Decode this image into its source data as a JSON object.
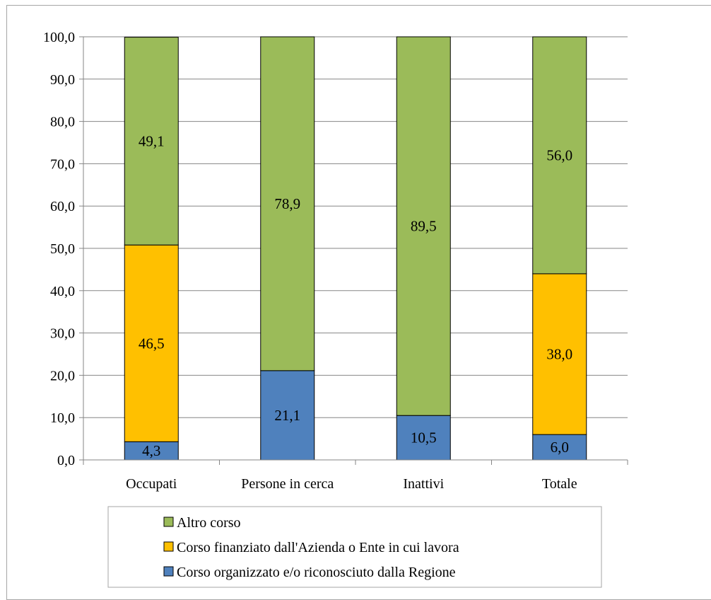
{
  "chart_data": {
    "type": "bar",
    "stacked": true,
    "categories": [
      "Occupati",
      "Persone in cerca",
      "Inattivi",
      "Totale"
    ],
    "series": [
      {
        "name": "Corso organizzato e/o riconosciuto dalla Regione",
        "color": "#4f81bd",
        "values": [
          4.3,
          21.1,
          10.5,
          6.0
        ],
        "labels": [
          "4,3",
          "21,1",
          "10,5",
          "6,0"
        ]
      },
      {
        "name": "Corso finanziato dall'Azienda o Ente in cui lavora",
        "color": "#ffc000",
        "values": [
          46.5,
          0,
          0,
          38.0
        ],
        "labels": [
          "46,5",
          "",
          "",
          "38,0"
        ]
      },
      {
        "name": "Altro corso",
        "color": "#9bbb59",
        "values": [
          49.1,
          78.9,
          89.5,
          56.0
        ],
        "labels": [
          "49,1",
          "78,9",
          "89,5",
          "56,0"
        ]
      }
    ],
    "ylim": [
      0,
      100
    ],
    "yticks": [
      0,
      10,
      20,
      30,
      40,
      50,
      60,
      70,
      80,
      90,
      100
    ],
    "ytick_labels": [
      "0,0",
      "10,0",
      "20,0",
      "30,0",
      "40,0",
      "50,0",
      "60,0",
      "70,0",
      "80,0",
      "90,0",
      "100,0"
    ],
    "grid": true,
    "legend": {
      "placement": "bottom",
      "order": [
        "Altro corso",
        "Corso finanziato dall'Azienda o Ente in cui lavora",
        "Corso organizzato e/o riconosciuto dalla Regione"
      ]
    },
    "colors": {
      "gridline": "#868686",
      "axis": "#868686",
      "bar_edge": "#000000",
      "frame": "#a6a6a6"
    }
  }
}
